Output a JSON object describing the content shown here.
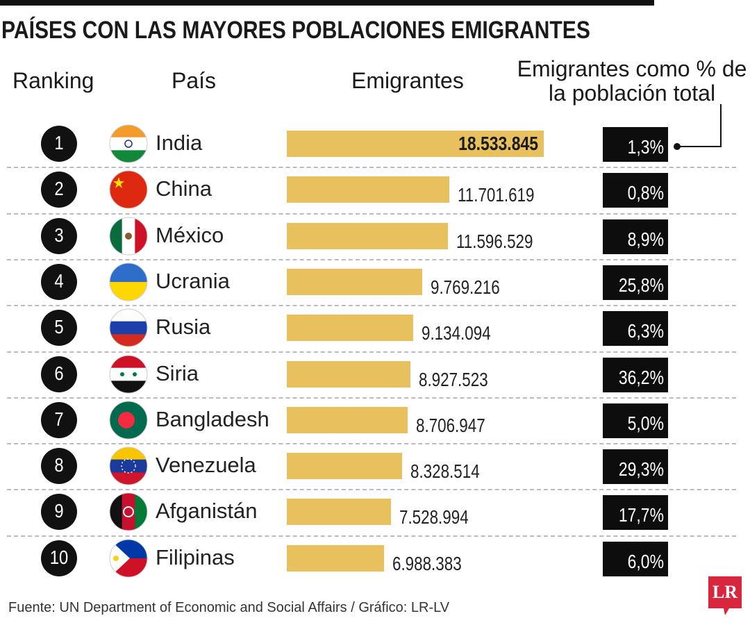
{
  "chart_data": {
    "type": "bar",
    "title": "PAÍSES CON LAS MAYORES POBLACIONES EMIGRANTES",
    "headers": [
      "Ranking",
      "País",
      "Emigrantes",
      "Emigrantes como % de la población total"
    ],
    "ranks": [
      1,
      2,
      3,
      4,
      5,
      6,
      7,
      8,
      9,
      10
    ],
    "categories": [
      "India",
      "China",
      "México",
      "Ucrania",
      "Rusia",
      "Siria",
      "Bangladesh",
      "Venezuela",
      "Afganistán",
      "Filipinas"
    ],
    "values": [
      18533845,
      11701619,
      11596529,
      9769216,
      9134094,
      8927523,
      8706947,
      8328514,
      7528994,
      6988383
    ],
    "value_labels": [
      "18.533.845",
      "11.701.619",
      "11.596.529",
      "9.769.216",
      "9.134.094",
      "8.927.523",
      "8.706.947",
      "8.328.514",
      "7.528.994",
      "6.988.383"
    ],
    "color": "#e8c15e",
    "percent": [
      {
        "value": 1.3,
        "label": "1,3%"
      },
      {
        "value": 0.8,
        "label": "0,8%"
      },
      {
        "value": 8.9,
        "label": "8,9%"
      },
      {
        "value": 25.8,
        "label": "25,8%"
      },
      {
        "value": 6.3,
        "label": "6,3%"
      },
      {
        "value": 36.2,
        "label": "36,2%"
      },
      {
        "value": 5.0,
        "label": "5,0%"
      },
      {
        "value": 29.3,
        "label": "29,3%"
      },
      {
        "value": 17.7,
        "label": "17,7%"
      },
      {
        "value": 6.0,
        "label": "6,0%"
      }
    ],
    "source": "Fuente: UN Department of Economic and Social Affairs / Gráfico: LR-LV",
    "logo": "LR"
  }
}
